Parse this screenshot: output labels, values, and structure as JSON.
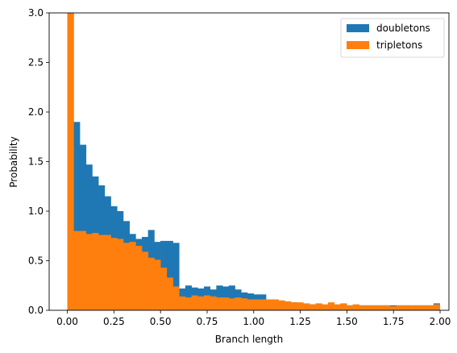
{
  "chart_data": {
    "type": "bar",
    "xlabel": "Branch length",
    "ylabel": "Probability",
    "xlim": [
      -0.0975,
      2.0475
    ],
    "ylim": [
      0,
      3
    ],
    "bin_start": 0.0,
    "bin_width": 0.0333,
    "x_ticks": [
      "0.00",
      "0.25",
      "0.50",
      "0.75",
      "1.00",
      "1.25",
      "1.50",
      "1.75",
      "2.00"
    ],
    "y_ticks": [
      "0.0",
      "0.5",
      "1.0",
      "1.5",
      "2.0",
      "2.5",
      "3.0"
    ],
    "legend_position": "top-right",
    "series": [
      {
        "name": "doubletons",
        "color": "#1f77b4",
        "values": [
          3.0,
          1.9,
          1.67,
          1.47,
          1.35,
          1.26,
          1.15,
          1.05,
          1.0,
          0.9,
          0.77,
          0.72,
          0.74,
          0.81,
          0.69,
          0.7,
          0.7,
          0.68,
          0.22,
          0.25,
          0.23,
          0.22,
          0.24,
          0.21,
          0.25,
          0.24,
          0.25,
          0.21,
          0.18,
          0.17,
          0.16,
          0.16,
          0.08,
          0.07,
          0.09,
          0.07,
          0.08,
          0.07,
          0.06,
          0.06,
          0.05,
          0.05,
          0.05,
          0.05,
          0.05,
          0.05,
          0.05,
          0.05,
          0.05,
          0.05,
          0.05,
          0.05,
          0.05,
          0.05,
          0.05,
          0.05,
          0.05,
          0.05,
          0.05,
          0.07
        ]
      },
      {
        "name": "tripletons",
        "color": "#ff7f0e",
        "values": [
          3.0,
          0.8,
          0.8,
          0.77,
          0.78,
          0.76,
          0.76,
          0.73,
          0.72,
          0.68,
          0.69,
          0.65,
          0.59,
          0.53,
          0.51,
          0.43,
          0.33,
          0.24,
          0.14,
          0.13,
          0.15,
          0.14,
          0.15,
          0.14,
          0.13,
          0.13,
          0.12,
          0.13,
          0.12,
          0.11,
          0.11,
          0.11,
          0.11,
          0.11,
          0.1,
          0.09,
          0.08,
          0.08,
          0.07,
          0.06,
          0.07,
          0.06,
          0.08,
          0.06,
          0.07,
          0.05,
          0.06,
          0.05,
          0.05,
          0.05,
          0.05,
          0.05,
          0.04,
          0.05,
          0.05,
          0.05,
          0.05,
          0.05,
          0.05,
          0.06
        ]
      }
    ]
  }
}
